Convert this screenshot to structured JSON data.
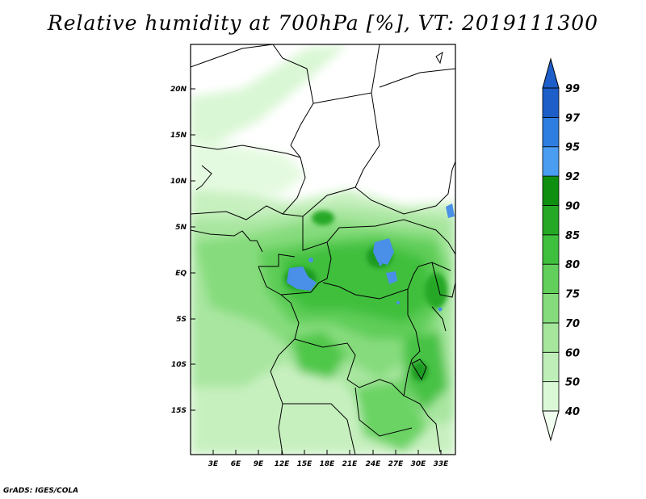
{
  "title": "Relative humidity at 700hPa [%], VT: 2019111300",
  "credit": "GrADS: IGES/COLA",
  "map": {
    "lat_ticks": [
      "20N",
      "15N",
      "10N",
      "5N",
      "EQ",
      "5S",
      "10S",
      "15S"
    ],
    "lon_ticks": [
      "3E",
      "6E",
      "9E",
      "12E",
      "15E",
      "18E",
      "21E",
      "24E",
      "27E",
      "30E",
      "33E"
    ]
  },
  "colorbar": {
    "levels": [
      "40",
      "50",
      "60",
      "70",
      "75",
      "80",
      "85",
      "90",
      "92",
      "95",
      "97",
      "99"
    ],
    "colors": [
      "#f0fff0",
      "#daf8d6",
      "#bfeeb9",
      "#a5e59c",
      "#86dc7d",
      "#62cf5c",
      "#3fbf3e",
      "#25a825",
      "#0f8f10",
      "#4a9df0",
      "#2e7de0",
      "#1e5ec8"
    ]
  }
}
